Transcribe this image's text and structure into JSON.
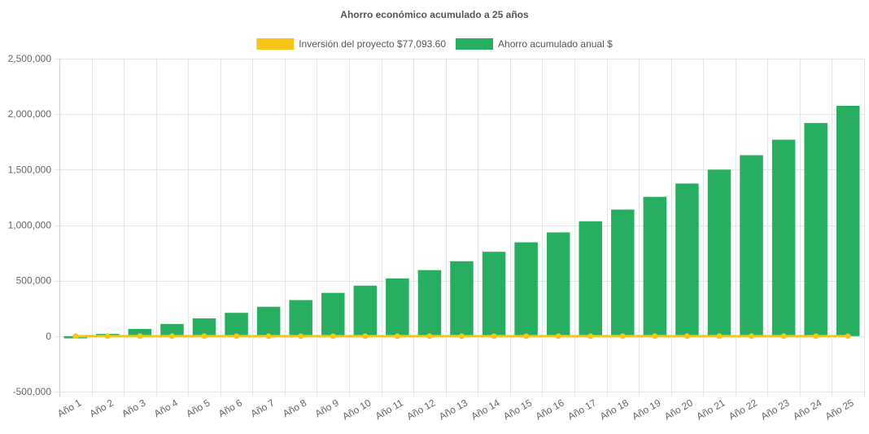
{
  "chart_data": {
    "type": "bar",
    "title": "Ahorro económico acumulado a 25 años",
    "categories": [
      "Año 1",
      "Año 2",
      "Año 3",
      "Año 4",
      "Año 5",
      "Año 6",
      "Año 7",
      "Año 8",
      "Año 9",
      "Año 10",
      "Año 11",
      "Año 12",
      "Año 13",
      "Año 14",
      "Año 15",
      "Año 16",
      "Año 17",
      "Año 18",
      "Año 19",
      "Año 20",
      "Año 21",
      "Año 22",
      "Año 23",
      "Año 24",
      "Año 25"
    ],
    "series": [
      {
        "name": "Inversión del proyecto $77,093.60",
        "type": "line",
        "color": "#f5c518",
        "values": [
          0,
          0,
          0,
          0,
          0,
          0,
          0,
          0,
          0,
          0,
          0,
          0,
          0,
          0,
          0,
          0,
          0,
          0,
          0,
          0,
          0,
          0,
          0,
          0,
          0
        ]
      },
      {
        "name": "Ahorro acumulado anual $",
        "type": "bar",
        "color": "#27ae60",
        "values": [
          -20000,
          20000,
          65000,
          110000,
          160000,
          210000,
          265000,
          325000,
          390000,
          455000,
          520000,
          595000,
          675000,
          760000,
          845000,
          935000,
          1035000,
          1140000,
          1255000,
          1375000,
          1500000,
          1630000,
          1770000,
          1920000,
          2075000
        ]
      }
    ],
    "ylim": [
      -500000,
      2500000
    ],
    "yticks": [
      "-500,000",
      "0",
      "500,000",
      "1,000,000",
      "1,500,000",
      "2,000,000",
      "2,500,000"
    ],
    "ytick_values": [
      -500000,
      0,
      500000,
      1000000,
      1500000,
      2000000,
      2500000
    ],
    "legend_position": "top",
    "grid": true
  }
}
